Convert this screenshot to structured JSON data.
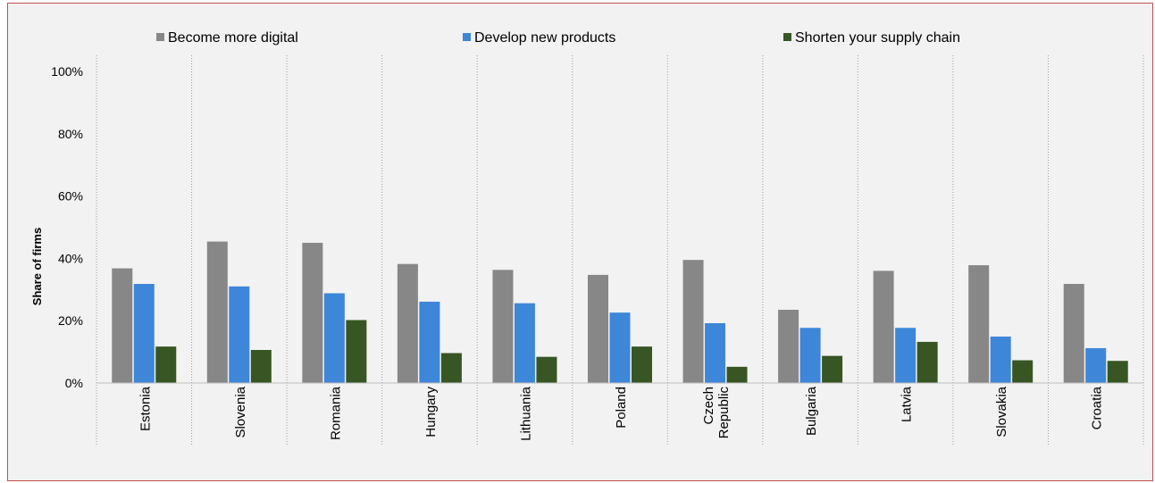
{
  "chart_data": {
    "type": "bar",
    "ylabel": "Share of firms",
    "ylim": [
      0,
      100
    ],
    "yticks": [
      "0%",
      "20%",
      "40%",
      "60%",
      "80%",
      "100%"
    ],
    "legend_position": "top",
    "grid": "vertical dotted separators between categories",
    "categories": [
      "Estonia",
      "Slovenia",
      "Romania",
      "Hungary",
      "Lithuania",
      "Poland",
      "Czech Republic",
      "Bulgaria",
      "Latvia",
      "Slovakia",
      "Croatia"
    ],
    "category_lines": [
      [
        "Estonia"
      ],
      [
        "Slovenia"
      ],
      [
        "Romania"
      ],
      [
        "Hungary"
      ],
      [
        "Lithuania"
      ],
      [
        "Poland"
      ],
      [
        "Czech",
        "Republic"
      ],
      [
        "Bulgaria"
      ],
      [
        "Latvia"
      ],
      [
        "Slovakia"
      ],
      [
        "Croatia"
      ]
    ],
    "series": [
      {
        "name": "Become more digital",
        "color": "#878787",
        "values": [
          36.8,
          45.4,
          45.0,
          38.2,
          36.3,
          34.7,
          39.5,
          23.5,
          36.0,
          37.8,
          31.8
        ]
      },
      {
        "name": "Develop new products",
        "color": "#3e86d8",
        "values": [
          31.8,
          31.0,
          28.8,
          26.1,
          25.6,
          22.6,
          19.2,
          17.7,
          17.7,
          14.9,
          11.2
        ]
      },
      {
        "name": "Shorten your supply chain",
        "color": "#375623",
        "values": [
          11.7,
          10.6,
          20.2,
          9.6,
          8.4,
          11.7,
          5.2,
          8.7,
          13.2,
          7.3,
          7.1
        ]
      }
    ]
  }
}
